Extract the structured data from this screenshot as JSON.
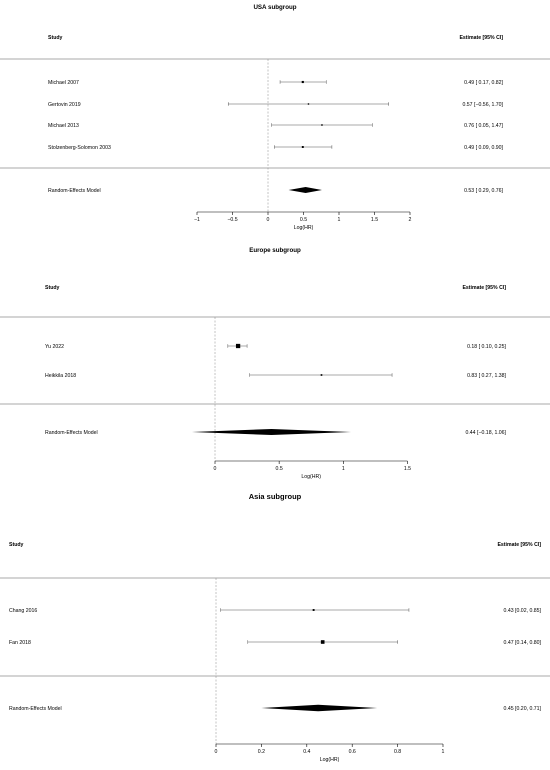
{
  "chart_data": [
    {
      "type": "forest",
      "title": "USA subgroup",
      "header_left": "Study",
      "header_right": "Estimate [95% CI]",
      "xlabel": "Log(HR)",
      "xticks": [
        -1,
        -0.5,
        0,
        0.5,
        1,
        1.5,
        2
      ],
      "tick_labels": [
        "−1",
        "−0.5",
        "0",
        "0.5",
        "1",
        "1.5",
        "2"
      ],
      "xlim": [
        -1,
        2
      ],
      "studies": [
        {
          "name": "Michael 2007",
          "estimate": 0.49,
          "lower": 0.17,
          "upper": 0.82,
          "text": "0.49 [ 0.17, 0.82]"
        },
        {
          "name": "Gertovin 2019",
          "estimate": 0.57,
          "lower": -0.56,
          "upper": 1.7,
          "text": "0.57 [−0.56, 1.70]"
        },
        {
          "name": "Michael 2013",
          "estimate": 0.76,
          "lower": 0.05,
          "upper": 1.47,
          "text": "0.76 [ 0.05, 1.47]"
        },
        {
          "name": "Stolzenberg-Solomon 2003",
          "estimate": 0.49,
          "lower": 0.09,
          "upper": 0.9,
          "text": "0.49 [ 0.09, 0.90]"
        }
      ],
      "summary": {
        "name": "Random-Effects Model",
        "estimate": 0.53,
        "lower": 0.29,
        "upper": 0.76,
        "text": "0.53 [ 0.29, 0.76]"
      }
    },
    {
      "type": "forest",
      "title": "Europe subgroup",
      "header_left": "Study",
      "header_right": "Estimate [95% CI]",
      "xlabel": "Log(HR)",
      "xticks": [
        0,
        0.5,
        1,
        1.5
      ],
      "tick_labels": [
        "0",
        "0.5",
        "1",
        "1.5"
      ],
      "xlim": [
        0,
        1.5
      ],
      "studies": [
        {
          "name": "Yu 2022",
          "estimate": 0.18,
          "lower": 0.1,
          "upper": 0.25,
          "text": "0.18 [ 0.10, 0.25]"
        },
        {
          "name": "Heikkila 2018",
          "estimate": 0.83,
          "lower": 0.27,
          "upper": 1.38,
          "text": "0.83 [ 0.27, 1.38]"
        }
      ],
      "summary": {
        "name": "Random-Effects Model",
        "estimate": 0.44,
        "lower": -0.18,
        "upper": 1.06,
        "text": "0.44 [−0.18, 1.06]"
      }
    },
    {
      "type": "forest",
      "title": "Asia subgroup",
      "header_left": "Study",
      "header_right": "Estimate [95% CI]",
      "xlabel": "Log(HR)",
      "xticks": [
        0,
        0.2,
        0.4,
        0.6,
        0.8,
        1
      ],
      "tick_labels": [
        "0",
        "0.2",
        "0.4",
        "0.6",
        "0.8",
        "1"
      ],
      "xlim": [
        0,
        1
      ],
      "studies": [
        {
          "name": "Chang 2016",
          "estimate": 0.43,
          "lower": 0.02,
          "upper": 0.85,
          "text": "0.43 [0.02, 0.85]"
        },
        {
          "name": "Fan 2018",
          "estimate": 0.47,
          "lower": 0.14,
          "upper": 0.8,
          "text": "0.47 [0.14, 0.80]"
        }
      ],
      "summary": {
        "name": "Random-Effects Model",
        "estimate": 0.45,
        "lower": 0.2,
        "upper": 0.71,
        "text": "0.45 [0.20, 0.71]"
      }
    }
  ]
}
